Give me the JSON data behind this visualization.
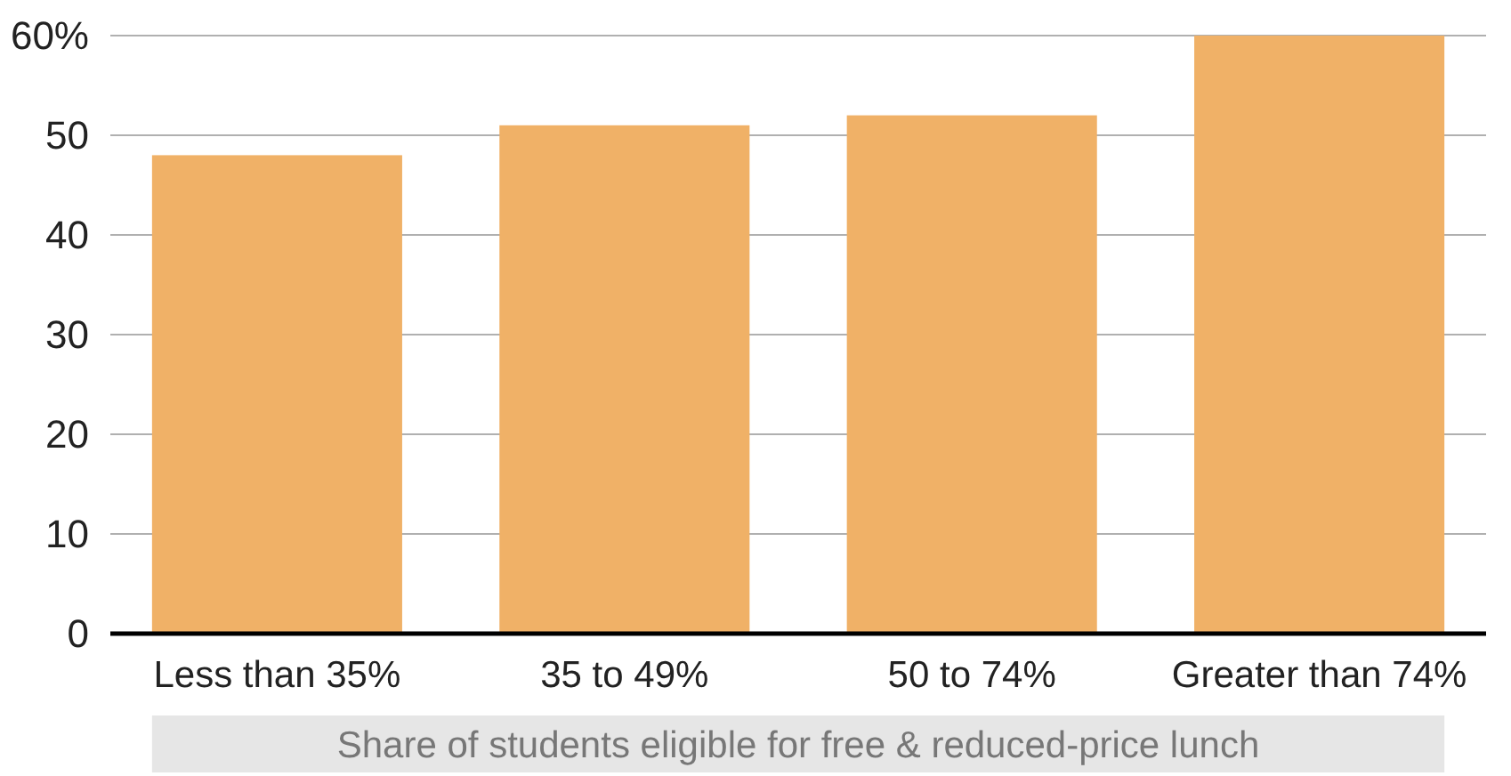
{
  "chart_data": {
    "type": "bar",
    "xlabel": "Share of students eligible for free & reduced-price lunch",
    "categories": [
      "Less than 35%",
      "35 to 49%",
      "50 to 74%",
      "Greater than 74%"
    ],
    "values": [
      48,
      51,
      52,
      60
    ],
    "color": "#f0b167",
    "ylim": [
      0,
      60
    ],
    "yticks": [
      0,
      10,
      20,
      30,
      40,
      50,
      {
        "value": 60,
        "label": "60%"
      }
    ],
    "grid": "y"
  }
}
